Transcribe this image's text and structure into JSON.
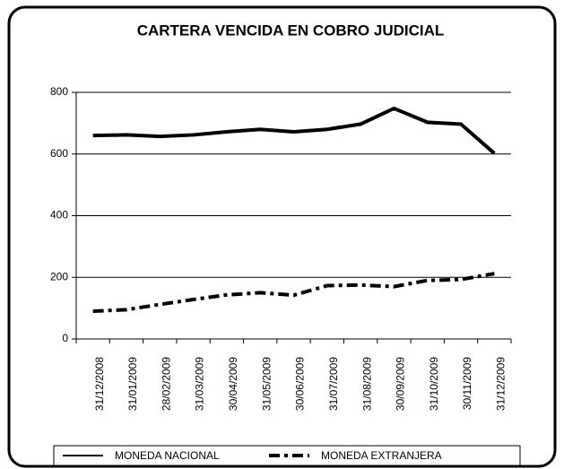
{
  "chart_data": {
    "type": "line",
    "title": "CARTERA VENCIDA EN COBRO JUDICIAL",
    "categories": [
      "31/12/2008",
      "31/01/2009",
      "28/02/2009",
      "31/03/2009",
      "30/04/2009",
      "31/05/2009",
      "30/06/2009",
      "31/07/2009",
      "31/08/2009",
      "30/09/2009",
      "31/10/2009",
      "30/11/2009",
      "31/12/2009"
    ],
    "series": [
      {
        "name": "MONEDA NACIONAL",
        "color": "#000000",
        "style": "solid",
        "values": [
          660,
          662,
          657,
          662,
          672,
          680,
          672,
          680,
          697,
          748,
          703,
          697,
          602
        ]
      },
      {
        "name": "MONEDA EXTRANJERA",
        "color": "#000000",
        "style": "dashdot",
        "values": [
          90,
          95,
          112,
          128,
          143,
          150,
          142,
          173,
          175,
          170,
          190,
          193,
          212
        ]
      }
    ],
    "ylim": [
      0,
      800
    ],
    "yticks": [
      0,
      200,
      400,
      600,
      800
    ],
    "grid": true,
    "legend": "bottom"
  }
}
